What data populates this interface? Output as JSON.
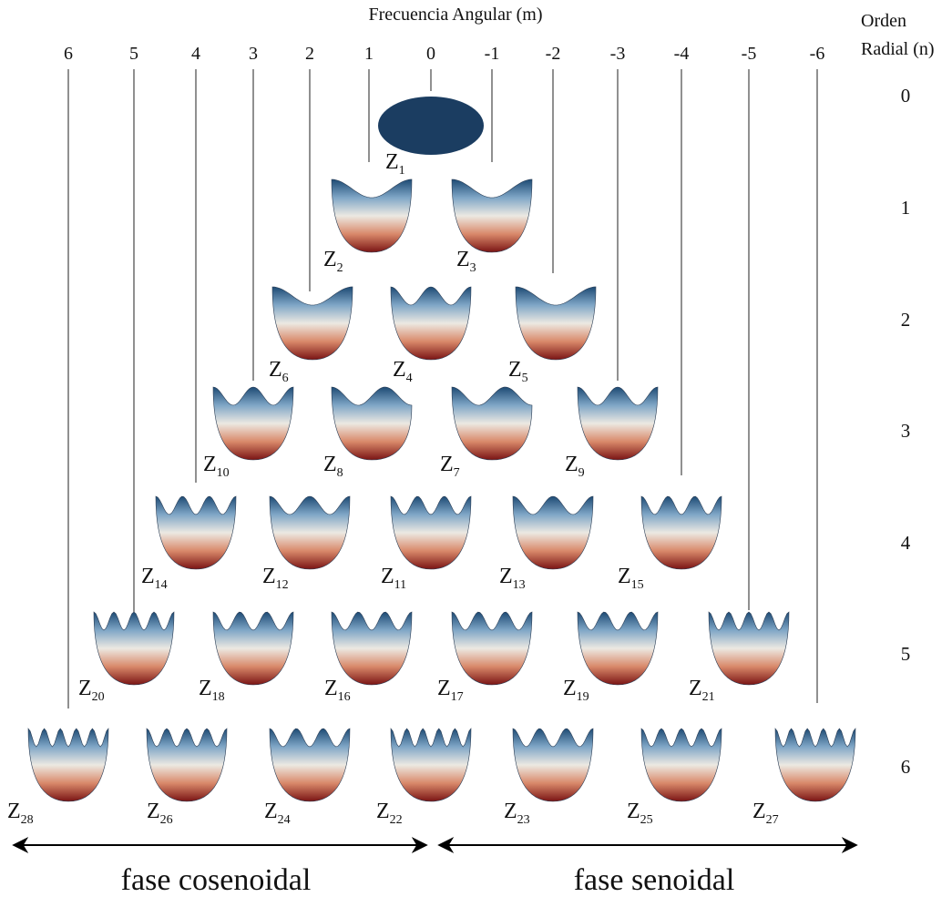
{
  "header": {
    "title": "Frecuencia Angular (m)",
    "radial_title": [
      "Orden",
      "Radial (n)"
    ]
  },
  "columns": [
    "6",
    "5",
    "4",
    "3",
    "2",
    "1",
    "0",
    "-1",
    "-2",
    "-3",
    "-4",
    "-5",
    "-6"
  ],
  "rows": [
    "0",
    "1",
    "2",
    "3",
    "4",
    "5",
    "6"
  ],
  "nodes": [
    {
      "symbol": "Z",
      "index": "1"
    },
    {
      "symbol": "Z",
      "index": "2"
    },
    {
      "symbol": "Z",
      "index": "3"
    },
    {
      "symbol": "Z",
      "index": "6"
    },
    {
      "symbol": "Z",
      "index": "4"
    },
    {
      "symbol": "Z",
      "index": "5"
    },
    {
      "symbol": "Z",
      "index": "10"
    },
    {
      "symbol": "Z",
      "index": "8"
    },
    {
      "symbol": "Z",
      "index": "7"
    },
    {
      "symbol": "Z",
      "index": "9"
    },
    {
      "symbol": "Z",
      "index": "14"
    },
    {
      "symbol": "Z",
      "index": "12"
    },
    {
      "symbol": "Z",
      "index": "11"
    },
    {
      "symbol": "Z",
      "index": "13"
    },
    {
      "symbol": "Z",
      "index": "15"
    },
    {
      "symbol": "Z",
      "index": "20"
    },
    {
      "symbol": "Z",
      "index": "18"
    },
    {
      "symbol": "Z",
      "index": "16"
    },
    {
      "symbol": "Z",
      "index": "17"
    },
    {
      "symbol": "Z",
      "index": "19"
    },
    {
      "symbol": "Z",
      "index": "21"
    },
    {
      "symbol": "Z",
      "index": "28"
    },
    {
      "symbol": "Z",
      "index": "26"
    },
    {
      "symbol": "Z",
      "index": "24"
    },
    {
      "symbol": "Z",
      "index": "22"
    },
    {
      "symbol": "Z",
      "index": "23"
    },
    {
      "symbol": "Z",
      "index": "25"
    },
    {
      "symbol": "Z",
      "index": "27"
    }
  ],
  "footer": {
    "cosine": "fase cosenoidal",
    "sine": "fase senoidal"
  }
}
